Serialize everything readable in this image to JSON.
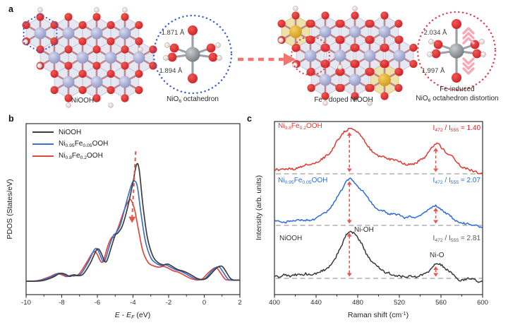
{
  "panels": {
    "a_label": "a",
    "b_label": "b",
    "c_label": "c"
  },
  "panel_a": {
    "niooh_caption": "NiOOH",
    "octahedron_caption": [
      {
        "t": "NiO"
      },
      {
        "t": "6",
        "s": 1
      },
      {
        "t": " octahedron"
      }
    ],
    "fe_caption": "Fe - doped NiOOH",
    "distortion_caption_1": "Fe induced",
    "distortion_caption_2": [
      {
        "t": "NiO"
      },
      {
        "t": "6",
        "s": 1
      },
      {
        "t": " octahedron distortion"
      }
    ],
    "bond_lengths": {
      "nio6_top": "1.871 Å",
      "nio6_bottom": "1.894 Å",
      "distorted_top": "2.034 Å",
      "distorted_bottom": "1.997 Å"
    },
    "colors": {
      "oxygen": "#cd2128",
      "nickel": "#a8aed2",
      "iron": "#dfa928",
      "hydrogen": "#f4eeec",
      "bond": "#c08890",
      "ni_poly": "#e3e5f0",
      "fe_poly": "#ecdfa4",
      "blue_dotted": "#3c5bd0",
      "red_dotted": "#e23c48",
      "arrow_pink": "#f0756c",
      "chevron_pink": "#f5aab8"
    }
  },
  "chart_data": [
    {
      "id": "pdos",
      "type": "line",
      "xlabel_parts": [
        {
          "t": "E",
          "i": 1
        },
        {
          "t": " - "
        },
        {
          "t": "E",
          "i": 1
        },
        {
          "t": "F",
          "s": 1,
          "i": 1
        },
        {
          "t": " (eV)"
        }
      ],
      "ylabel": "PDOS (States/eV)",
      "xlim": [
        -10,
        2
      ],
      "x_ticks": [
        -10,
        -8,
        -6,
        -4,
        -2,
        0,
        2
      ],
      "x_minor_ticks": [
        -9,
        -7,
        -5,
        -3,
        -1,
        1
      ],
      "grid": false,
      "legend_position": "top-left",
      "series": [
        {
          "name": [
            {
              "t": "NiOOH"
            }
          ],
          "color": "#3d3d3d",
          "points": [
            [
              -10,
              0.005
            ],
            [
              -9.4,
              0.005
            ],
            [
              -9,
              0.01
            ],
            [
              -8.5,
              0.03
            ],
            [
              -8.1,
              0.055
            ],
            [
              -7.8,
              0.05
            ],
            [
              -7.55,
              0.035
            ],
            [
              -7.3,
              0.046
            ],
            [
              -7.1,
              0.04
            ],
            [
              -6.8,
              0.05
            ],
            [
              -6.4,
              0.12
            ],
            [
              -6.05,
              0.205
            ],
            [
              -5.85,
              0.2
            ],
            [
              -5.6,
              0.135
            ],
            [
              -5.45,
              0.14
            ],
            [
              -5.2,
              0.23
            ],
            [
              -5,
              0.3
            ],
            [
              -4.85,
              0.315
            ],
            [
              -4.6,
              0.36
            ],
            [
              -4.3,
              0.48
            ],
            [
              -4,
              0.64
            ],
            [
              -3.8,
              0.755
            ],
            [
              -3.65,
              0.72
            ],
            [
              -3.45,
              0.5
            ],
            [
              -3.2,
              0.29
            ],
            [
              -2.9,
              0.17
            ],
            [
              -2.6,
              0.125
            ],
            [
              -2.3,
              0.11
            ],
            [
              -2.05,
              0.115
            ],
            [
              -1.8,
              0.1
            ],
            [
              -1.5,
              0.08
            ],
            [
              -1.2,
              0.07
            ],
            [
              -0.9,
              0.055
            ],
            [
              -0.6,
              0.035
            ],
            [
              -0.35,
              0.02
            ],
            [
              -0.1,
              0.015
            ],
            [
              0.15,
              0.025
            ],
            [
              0.45,
              0.06
            ],
            [
              0.75,
              0.095
            ],
            [
              1,
              0.1
            ],
            [
              1.2,
              0.07
            ],
            [
              1.45,
              0.025
            ],
            [
              1.65,
              0.012
            ],
            [
              2,
              0.012
            ]
          ]
        },
        {
          "name": [
            {
              "t": "Ni"
            },
            {
              "t": "0.95",
              "s": 1
            },
            {
              "t": "Fe"
            },
            {
              "t": "0.05",
              "s": 1
            },
            {
              "t": "OOH"
            }
          ],
          "color": "#3e6fca",
          "points": [
            [
              -10,
              0.005
            ],
            [
              -9.5,
              0.005
            ],
            [
              -9.1,
              0.012
            ],
            [
              -8.6,
              0.032
            ],
            [
              -8.2,
              0.055
            ],
            [
              -7.9,
              0.048
            ],
            [
              -7.65,
              0.035
            ],
            [
              -7.4,
              0.045
            ],
            [
              -7.2,
              0.04
            ],
            [
              -6.9,
              0.055
            ],
            [
              -6.5,
              0.13
            ],
            [
              -6.15,
              0.21
            ],
            [
              -5.95,
              0.2
            ],
            [
              -5.7,
              0.135
            ],
            [
              -5.55,
              0.145
            ],
            [
              -5.3,
              0.24
            ],
            [
              -5.1,
              0.3
            ],
            [
              -4.95,
              0.315
            ],
            [
              -4.7,
              0.37
            ],
            [
              -4.4,
              0.5
            ],
            [
              -4.1,
              0.62
            ],
            [
              -3.92,
              0.65
            ],
            [
              -3.75,
              0.61
            ],
            [
              -3.55,
              0.44
            ],
            [
              -3.3,
              0.26
            ],
            [
              -3,
              0.155
            ],
            [
              -2.7,
              0.12
            ],
            [
              -2.4,
              0.105
            ],
            [
              -2.15,
              0.11
            ],
            [
              -1.9,
              0.095
            ],
            [
              -1.6,
              0.078
            ],
            [
              -1.3,
              0.068
            ],
            [
              -1,
              0.05
            ],
            [
              -0.7,
              0.03
            ],
            [
              -0.45,
              0.018
            ],
            [
              -0.2,
              0.014
            ],
            [
              0.05,
              0.022
            ],
            [
              0.35,
              0.06
            ],
            [
              0.62,
              0.09
            ],
            [
              0.85,
              0.095
            ],
            [
              1.05,
              0.065
            ],
            [
              1.3,
              0.022
            ],
            [
              1.5,
              0.012
            ],
            [
              2,
              0.012
            ]
          ]
        },
        {
          "name": [
            {
              "t": "Ni"
            },
            {
              "t": "0.8",
              "s": 1
            },
            {
              "t": "Fe"
            },
            {
              "t": "0.2",
              "s": 1
            },
            {
              "t": "OOH"
            }
          ],
          "color": "#e0483e",
          "points": [
            [
              -10,
              0.005
            ],
            [
              -9.6,
              0.005
            ],
            [
              -9.2,
              0.012
            ],
            [
              -8.7,
              0.032
            ],
            [
              -8.3,
              0.052
            ],
            [
              -8,
              0.046
            ],
            [
              -7.75,
              0.034
            ],
            [
              -7.5,
              0.042
            ],
            [
              -7.3,
              0.038
            ],
            [
              -7,
              0.055
            ],
            [
              -6.6,
              0.125
            ],
            [
              -6.25,
              0.19
            ],
            [
              -6.05,
              0.185
            ],
            [
              -5.8,
              0.13
            ],
            [
              -5.65,
              0.14
            ],
            [
              -5.4,
              0.235
            ],
            [
              -5.2,
              0.285
            ],
            [
              -5.05,
              0.29
            ],
            [
              -4.8,
              0.36
            ],
            [
              -4.5,
              0.46
            ],
            [
              -4.25,
              0.52
            ],
            [
              -4.1,
              0.525
            ],
            [
              -3.9,
              0.46
            ],
            [
              -3.7,
              0.34
            ],
            [
              -3.45,
              0.2
            ],
            [
              -3.15,
              0.125
            ],
            [
              -2.85,
              0.103
            ],
            [
              -2.55,
              0.095
            ],
            [
              -2.3,
              0.1
            ],
            [
              -2.05,
              0.09
            ],
            [
              -1.75,
              0.072
            ],
            [
              -1.45,
              0.062
            ],
            [
              -1.15,
              0.045
            ],
            [
              -0.85,
              0.026
            ],
            [
              -0.6,
              0.016
            ],
            [
              -0.35,
              0.012
            ],
            [
              -0.1,
              0.02
            ],
            [
              0.2,
              0.055
            ],
            [
              0.5,
              0.085
            ],
            [
              0.7,
              0.09
            ],
            [
              0.9,
              0.06
            ],
            [
              1.15,
              0.02
            ],
            [
              1.35,
              0.012
            ],
            [
              2,
              0.012
            ]
          ]
        }
      ],
      "annotation_arrow": {
        "x_top": -3.85,
        "y_top": 0.84,
        "x_bottom": -4.05,
        "y_bottom": 0.42,
        "color": "#e85548"
      }
    },
    {
      "id": "raman",
      "type": "line",
      "xlabel_parts": [
        {
          "t": "Raman shift (cm"
        },
        {
          "t": "-1",
          "p": 1
        },
        {
          "t": ")"
        }
      ],
      "ylabel": "Intensity (arb. units)",
      "xlim": [
        400,
        600
      ],
      "x_ticks": [
        400,
        440,
        480,
        520,
        560,
        600
      ],
      "x_minor_ticks": [
        420,
        460,
        500,
        540,
        580
      ],
      "marker_positions": [
        472,
        555
      ],
      "marker_color": "#ef5350",
      "baseline_color": "#8a8a8a",
      "peak_labels": {
        "ni_oh": "Ni-OH",
        "ni_o": "Ni-O"
      },
      "series": [
        {
          "name": [
            {
              "t": "Ni"
            },
            {
              "t": "0.8",
              "s": 1
            },
            {
              "t": "Fe"
            },
            {
              "t": "0.2",
              "s": 1
            },
            {
              "t": "OOH"
            }
          ],
          "color": "#e0392f",
          "stack": 0,
          "seed": 11,
          "ratio_parts": [
            {
              "t": "I"
            },
            {
              "t": "472",
              "s": 1
            },
            {
              "t": " / I"
            },
            {
              "t": "555",
              "s": 1
            },
            {
              "t": " = 1.40"
            }
          ],
          "ratio_color": "#e02020",
          "peaks": [
            {
              "c": 469,
              "a": 0.95,
              "w": 16
            },
            {
              "c": 483,
              "a": 0.35,
              "w": 12
            },
            {
              "c": 512,
              "a": 0.18,
              "w": 18
            },
            {
              "c": 556,
              "a": 0.66,
              "w": 12
            },
            {
              "c": 568,
              "a": 0.18,
              "w": 10
            }
          ],
          "tilt": [
            0.05,
            -0.06
          ]
        },
        {
          "name": [
            {
              "t": "Ni"
            },
            {
              "t": "0.95",
              "s": 1
            },
            {
              "t": "Fe"
            },
            {
              "t": "0.05",
              "s": 1
            },
            {
              "t": "OOH"
            }
          ],
          "color": "#2e6bd6",
          "stack": 1,
          "seed": 23,
          "ratio_parts": [
            {
              "t": "I"
            },
            {
              "t": "472",
              "s": 1
            },
            {
              "t": " / I"
            },
            {
              "t": "555",
              "s": 1
            },
            {
              "t": " = 2.07"
            }
          ],
          "ratio_color": "#2e6bd6",
          "peaks": [
            {
              "c": 471,
              "a": 1.0,
              "w": 13
            },
            {
              "c": 486,
              "a": 0.35,
              "w": 14
            },
            {
              "c": 515,
              "a": 0.12,
              "w": 18
            },
            {
              "c": 554,
              "a": 0.47,
              "w": 11
            },
            {
              "c": 566,
              "a": 0.12,
              "w": 9
            }
          ],
          "tilt": [
            0.03,
            -0.08
          ]
        },
        {
          "name": [
            {
              "t": "NiOOH"
            }
          ],
          "color": "#383838",
          "stack": 2,
          "seed": 37,
          "ratio_parts": [
            {
              "t": "I"
            },
            {
              "t": "472",
              "s": 1
            },
            {
              "t": " / I"
            },
            {
              "t": "555",
              "s": 1
            },
            {
              "t": " = 2.81"
            }
          ],
          "ratio_color": "#595959",
          "peaks": [
            {
              "c": 471,
              "a": 1.0,
              "w": 11
            },
            {
              "c": 481,
              "a": 0.45,
              "w": 9
            },
            {
              "c": 494,
              "a": 0.12,
              "w": 8
            },
            {
              "c": 555,
              "a": 0.36,
              "w": 8
            },
            {
              "c": 564,
              "a": 0.16,
              "w": 7
            }
          ],
          "tilt": [
            0.03,
            -0.1
          ]
        }
      ]
    }
  ]
}
